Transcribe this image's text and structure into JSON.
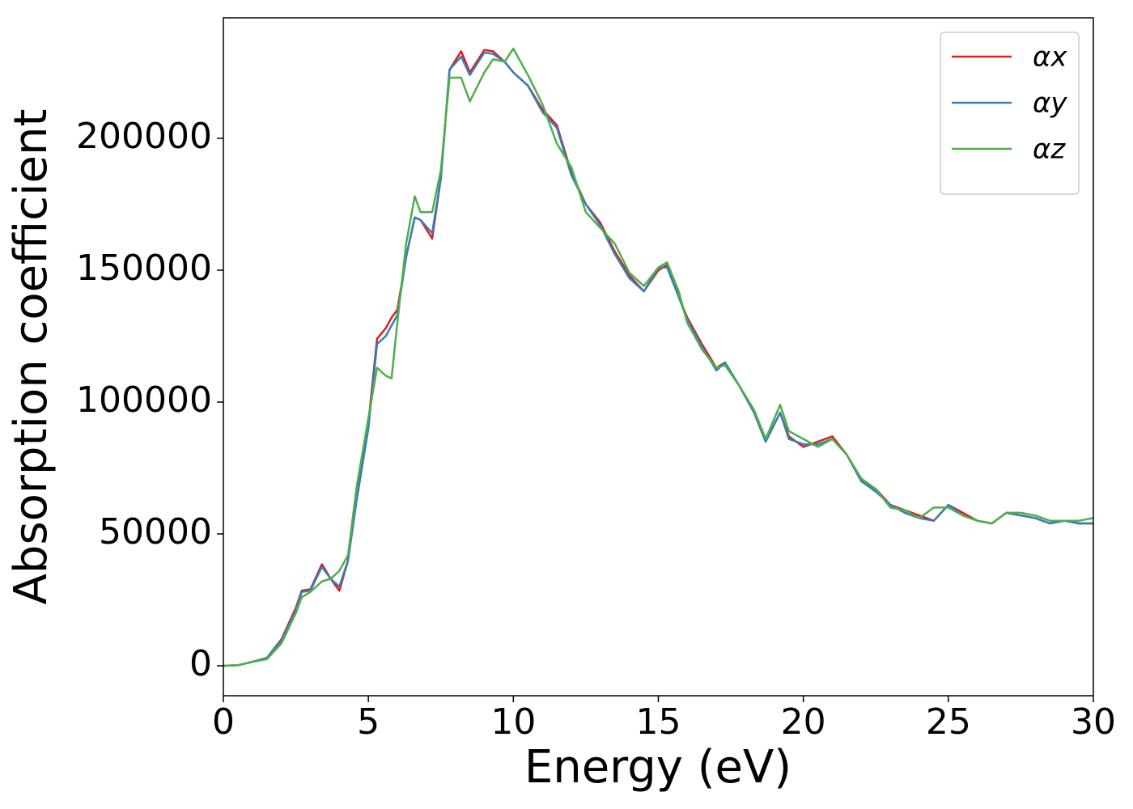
{
  "chart_data": {
    "type": "line",
    "xlabel": "Energy (eV)",
    "ylabel": "Absorption coefficient",
    "x": [
      0,
      0.5,
      1,
      1.5,
      2,
      2.5,
      2.7,
      3,
      3.4,
      3.7,
      4,
      4.3,
      4.6,
      5,
      5.3,
      5.6,
      5.8,
      6,
      6.3,
      6.6,
      6.8,
      7.2,
      7.5,
      7.8,
      8.2,
      8.5,
      9,
      9.3,
      9.7,
      10,
      10.5,
      11,
      11.5,
      12,
      12.5,
      13,
      13.5,
      14,
      14.5,
      15,
      15.3,
      15.7,
      16,
      16.5,
      17,
      17.3,
      17.8,
      18.3,
      18.7,
      19.2,
      19.5,
      20,
      20.5,
      21,
      21.5,
      22,
      22.5,
      23,
      23.5,
      24,
      24.5,
      25,
      25.5,
      26,
      26.5,
      27,
      27.5,
      28,
      28.5,
      29,
      29.5,
      30
    ],
    "series": [
      {
        "name": "αx",
        "color": "#e41a1c",
        "values": [
          0,
          200,
          1500,
          3000,
          10000,
          22000,
          28500,
          29000,
          38500,
          33000,
          28500,
          40000,
          65000,
          92000,
          124000,
          128000,
          132000,
          135000,
          155000,
          170000,
          169000,
          162000,
          185000,
          226000,
          233000,
          225000,
          233500,
          233000,
          229000,
          225000,
          220000,
          211000,
          205000,
          187000,
          175000,
          168000,
          157000,
          148000,
          142000,
          150000,
          152000,
          140000,
          132000,
          122000,
          113000,
          115000,
          106000,
          96000,
          85000,
          96000,
          87000,
          83000,
          85000,
          87000,
          80000,
          70000,
          67000,
          61000,
          59000,
          57000,
          55000,
          61000,
          58000,
          55000,
          54000,
          58000,
          57000,
          56000,
          54000,
          55000,
          54000,
          54000
        ]
      },
      {
        "name": "αy",
        "color": "#377eb8",
        "values": [
          0,
          200,
          1500,
          3000,
          9500,
          21000,
          28000,
          28500,
          37500,
          33000,
          30000,
          40000,
          63000,
          90000,
          122000,
          125000,
          129000,
          133000,
          155000,
          170000,
          169000,
          164000,
          185000,
          226000,
          231000,
          224000,
          232500,
          232000,
          229000,
          225000,
          220000,
          210000,
          204000,
          186000,
          175000,
          167000,
          156000,
          147000,
          142000,
          151000,
          151000,
          140000,
          131000,
          121000,
          112000,
          115000,
          106000,
          96000,
          85000,
          96000,
          86000,
          84000,
          84000,
          86000,
          80000,
          70000,
          66000,
          61000,
          58000,
          56000,
          55000,
          61000,
          57000,
          55000,
          54000,
          58000,
          57000,
          56000,
          54000,
          55000,
          54000,
          54000
        ]
      },
      {
        "name": "αz",
        "color": "#4daf4a",
        "values": [
          0,
          200,
          1500,
          2500,
          8500,
          20000,
          26000,
          28000,
          32000,
          33000,
          36000,
          42000,
          68000,
          94000,
          113000,
          110000,
          109000,
          130000,
          160000,
          178000,
          172000,
          172000,
          188000,
          223000,
          223000,
          214000,
          225000,
          230000,
          229000,
          234000,
          224000,
          213000,
          198000,
          189000,
          172000,
          166000,
          160000,
          149000,
          144000,
          151000,
          153000,
          142000,
          130000,
          120000,
          113000,
          114000,
          106000,
          97000,
          86000,
          99000,
          89000,
          86000,
          83000,
          86000,
          80000,
          71000,
          67000,
          60000,
          59000,
          56000,
          60000,
          60000,
          57000,
          55000,
          54000,
          58000,
          58000,
          57000,
          55000,
          55000,
          55000,
          56000
        ]
      }
    ],
    "xlim": [
      0,
      30
    ],
    "xticks": [
      0,
      5,
      10,
      15,
      20,
      25,
      30
    ],
    "ylim": [
      -11350,
      245700
    ],
    "yticks": [
      0,
      50000,
      100000,
      150000,
      200000
    ],
    "grid": false,
    "legend": "upper right"
  }
}
